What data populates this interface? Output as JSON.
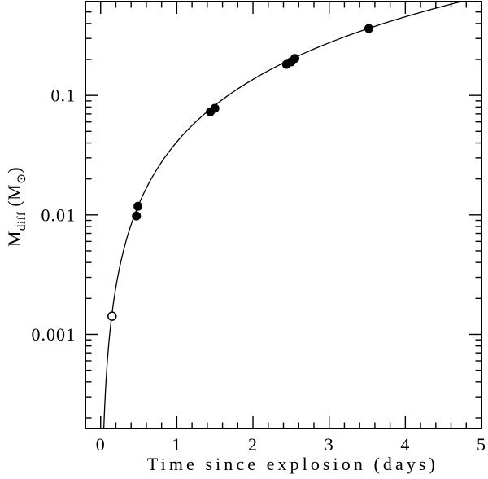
{
  "figure": {
    "background": "#ffffff",
    "ink_color": "#000000",
    "description": "log-linear scatter plot with model curve"
  },
  "chart_data": {
    "type": "scatter",
    "title": "",
    "xlabel": "Time since explosion (days)",
    "ylabel_parts": [
      {
        "text": "M",
        "sub": false
      },
      {
        "text": "diff",
        "sub": true
      },
      {
        "text": " (M",
        "sub": false
      },
      {
        "text": "⊙",
        "sub": true,
        "symbol": "sun-symbol"
      },
      {
        "text": ")",
        "sub": false
      }
    ],
    "x_axis": {
      "scale": "linear",
      "min": -0.2,
      "max": 5.0,
      "major_ticks": [
        0,
        1,
        2,
        3,
        4,
        5
      ],
      "tick_labels": [
        "0",
        "1",
        "2",
        "3",
        "4",
        "5"
      ],
      "minor_step": 0.2
    },
    "y_axis": {
      "scale": "log",
      "min": 0.000163,
      "max": 0.61,
      "major_ticks": [
        0.001,
        0.01,
        0.1
      ],
      "tick_labels": [
        "0.001",
        "0.01",
        "0.1"
      ]
    },
    "series": [
      {
        "name": "filled measurements",
        "marker": "filled-circle",
        "points": [
          [
            0.47,
            0.0098
          ],
          [
            0.49,
            0.0118
          ],
          [
            1.44,
            0.073
          ],
          [
            1.5,
            0.078
          ],
          [
            2.44,
            0.182
          ],
          [
            2.5,
            0.191
          ],
          [
            2.55,
            0.204
          ],
          [
            3.52,
            0.363
          ]
        ]
      },
      {
        "name": "open measurement",
        "marker": "open-circle",
        "points": [
          [
            0.15,
            0.00142
          ]
        ]
      }
    ],
    "curve": {
      "type": "power-law",
      "formula": "M = A * t^n",
      "A": 0.0408,
      "n": 1.74,
      "t_min": 0.042,
      "t_max": 4.733
    },
    "grid": false,
    "legend": false
  }
}
